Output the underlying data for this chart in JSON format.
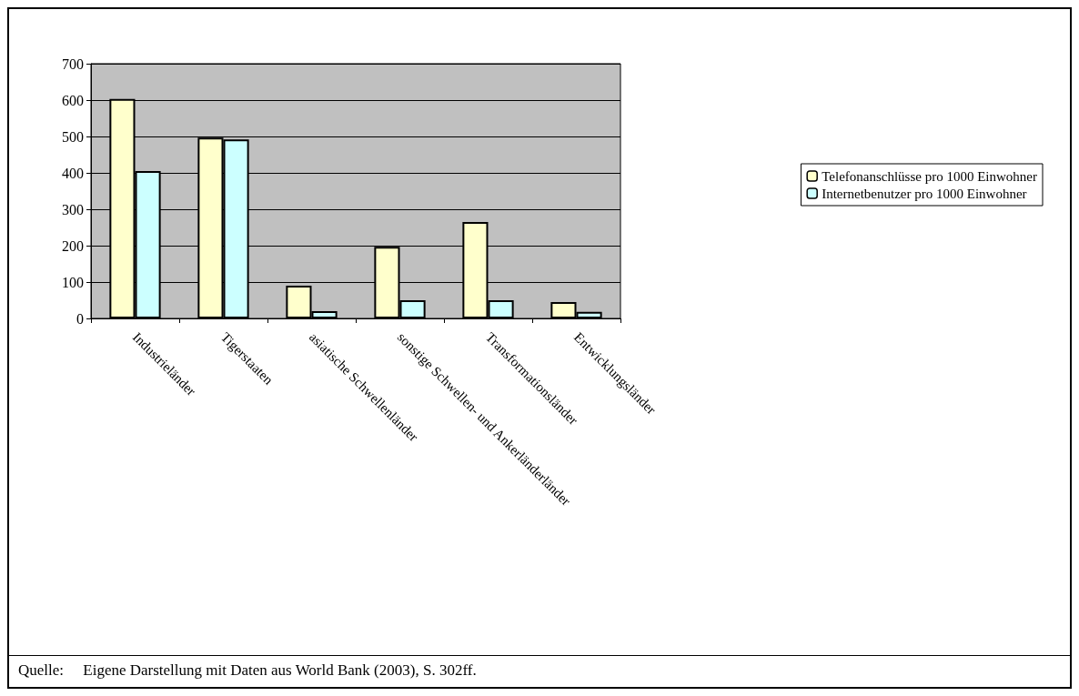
{
  "chart_data": {
    "type": "bar",
    "categories": [
      "Industrieländer",
      "Tigerstaaten",
      "asiatische Schwellenländer",
      "sonstige Schwellen- und Ankerländerländer",
      "Transformationsländer",
      "Entwicklungsländer"
    ],
    "series": [
      {
        "name": "Telefonanschlüsse pro 1000 Einwohner",
        "color": "#ffffcc",
        "values": [
          603,
          497,
          90,
          197,
          265,
          45
        ]
      },
      {
        "name": "Internetbenutzer pro 1000 Einwohner",
        "color": "#ccffff",
        "values": [
          405,
          492,
          20,
          50,
          50,
          18
        ]
      }
    ],
    "ylim": [
      0,
      700
    ],
    "yticks": [
      0,
      100,
      200,
      300,
      400,
      500,
      600,
      700
    ],
    "grid": "y",
    "legend": "right",
    "annotations": [
      "Quelle:     Eigene Darstellung mit Daten aus World Bank (2003), S. 302ff."
    ]
  }
}
